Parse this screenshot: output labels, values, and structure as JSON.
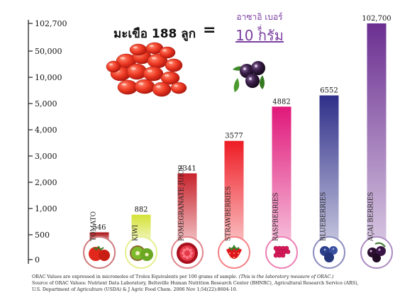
{
  "heading": {
    "tomato_caption": "มะเขือ 188 ลูก",
    "equals": "=",
    "acai_caption": "อาซาอิ เบอร์รี่",
    "acai_amount": "10 กรัม"
  },
  "chart_data": {
    "type": "bar",
    "title": "",
    "xlabel": "",
    "ylabel": "",
    "y_ticks": [
      "0",
      "500",
      "1,000",
      "2,000",
      "3,000",
      "4,000",
      "5,000",
      "10,000",
      "50,000",
      "102,700"
    ],
    "categories": [
      "TOMATO",
      "KIWI",
      "POMEGRANATE JUICE",
      "STRAWBERRIES",
      "RASPBERRIES",
      "BLUEBERRIES",
      "AÇAI BERRIES"
    ],
    "values": [
      546,
      882,
      2341,
      3577,
      4882,
      6552,
      102700
    ],
    "value_labels": [
      "546",
      "882",
      "2341",
      "3577",
      "4882",
      "6552",
      "102,700"
    ],
    "colors": [
      "#a80f12",
      "#d4e236",
      "#c8232c",
      "#ee1c24",
      "#e0187a",
      "#2f2f8a",
      "#6b2f91"
    ],
    "fruit_icons": [
      "tomato-icon",
      "kiwi-icon",
      "pomegranate-icon",
      "strawberry-icon",
      "raspberry-icon",
      "blueberry-icon",
      "acai-berry-icon"
    ],
    "grid": false,
    "legend": "none"
  },
  "footnote": {
    "line1": "ORAC Values are expressed in micromoles of Trolox Equivalents per 100 grams of sample.",
    "line1_italic": "(This is the laboratory measure of ORAC.)",
    "line2": "Source of ORAC Values: Nutrient Data Laboratory, Beltsville Human Nutrition Research Center (BHNRC), Agricultural Research Service (ARS),",
    "line3": "U.S. Department of Agriculture (USDA) & J Agric Food Chem. 2006 Nov 1;54(22):8604-10."
  }
}
